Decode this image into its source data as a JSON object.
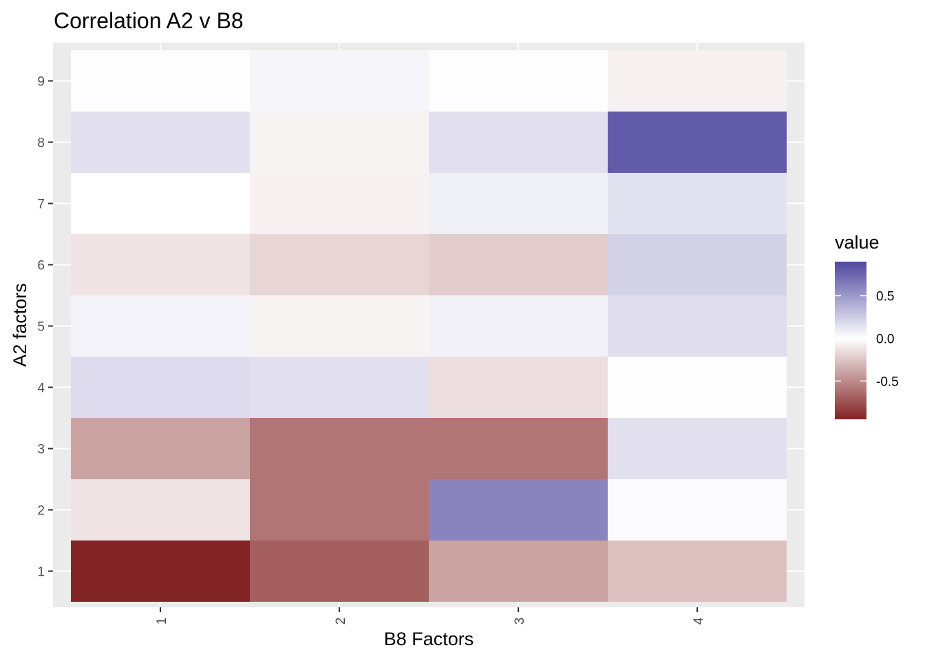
{
  "chart_data": {
    "type": "heatmap",
    "title": "Correlation A2 v B8",
    "xlabel": "B8 Factors",
    "ylabel": "A2 factors",
    "x_categories": [
      "1",
      "2",
      "3",
      "4"
    ],
    "y_categories": [
      "1",
      "2",
      "3",
      "4",
      "5",
      "6",
      "7",
      "8",
      "9"
    ],
    "values": [
      [
        -0.95,
        -0.7,
        -0.4,
        -0.27
      ],
      [
        -0.12,
        -0.6,
        0.6,
        0.02
      ],
      [
        -0.4,
        -0.6,
        -0.6,
        0.15
      ],
      [
        0.18,
        0.15,
        -0.14,
        0.01
      ],
      [
        0.06,
        -0.05,
        0.07,
        0.16
      ],
      [
        -0.12,
        -0.18,
        -0.22,
        0.22
      ],
      [
        0.0,
        -0.06,
        0.08,
        0.14
      ],
      [
        0.15,
        -0.05,
        0.15,
        0.8
      ],
      [
        0.01,
        0.05,
        -0.01,
        -0.06
      ]
    ],
    "legend": {
      "title": "value",
      "position": "right",
      "range": [
        -0.95,
        0.9
      ],
      "ticks": [
        0.5,
        0.0,
        -0.5
      ],
      "tick_labels": [
        "0.5",
        "0.0",
        "-0.5"
      ],
      "colors": {
        "low": "#832424",
        "mid": "#ffffff",
        "high": "#4e479e"
      }
    },
    "grid": true,
    "panel_background": "#ebebeb"
  }
}
